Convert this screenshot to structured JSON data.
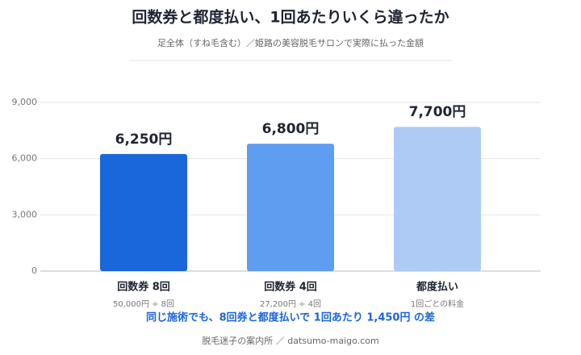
{
  "chart_data": {
    "type": "bar",
    "title": "回数券と都度払い、1回あたりいくら違ったか",
    "subtitle": "足全体（すね毛含む）／姫路の美容脱毛サロンで実際に払った金額",
    "categories": [
      "回数券 8回",
      "回数券 4回",
      "都度払い"
    ],
    "category_notes": [
      "50,000円 ÷ 8回",
      "27,200円 ÷ 4回",
      "1回ごとの料金"
    ],
    "values": [
      6250,
      6800,
      7700
    ],
    "value_labels": [
      "6,250円",
      "6,800円",
      "7,700円"
    ],
    "colors": [
      "#1a66db",
      "#5e9df0",
      "#aecbf5"
    ],
    "ylim": [
      0,
      9000
    ],
    "yticks": [
      0,
      {
        "value": 3000,
        "label": "3,000"
      },
      {
        "value": 6000,
        "label": "6,000"
      },
      {
        "value": 9000,
        "label": "9,000"
      }
    ],
    "grid": true,
    "annotation": "同じ施術でも、8回券と都度払いで 1回あたり 1,450円 の差",
    "footer": "脱毛迷子の案内所 ／ datsumo-maigo.com"
  }
}
